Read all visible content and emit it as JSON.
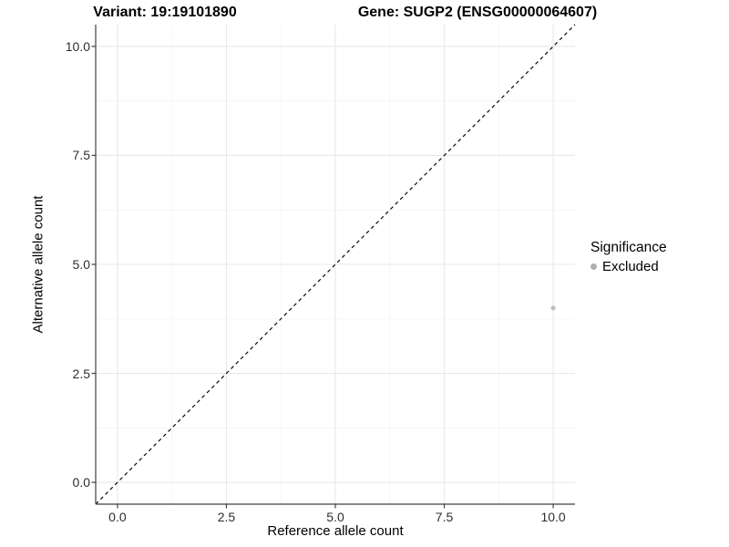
{
  "chart_data": {
    "type": "scatter",
    "title_left": "Variant: 19:19101890",
    "title_right": "Gene: SUGP2 (ENSG00000064607)",
    "xlabel": "Reference allele count",
    "ylabel": "Alternative allele count",
    "xlim": [
      -0.5,
      10.5
    ],
    "ylim": [
      -0.5,
      10.5
    ],
    "x_ticks": [
      0.0,
      2.5,
      5.0,
      7.5,
      10.0
    ],
    "x_tick_labels": [
      "0.0",
      "2.5",
      "5.0",
      "7.5",
      "10.0"
    ],
    "y_ticks": [
      0.0,
      2.5,
      5.0,
      7.5,
      10.0
    ],
    "y_tick_labels": [
      "0.0",
      "2.5",
      "5.0",
      "7.5",
      "10.0"
    ],
    "minor_gridlines": [
      1.25,
      3.75,
      6.25,
      8.75
    ],
    "grid": true,
    "reference_line": {
      "type": "identity",
      "style": "dashed",
      "from": [
        -0.5,
        -0.5
      ],
      "to": [
        10.5,
        10.5
      ],
      "color": "#000000"
    },
    "series": [
      {
        "name": "Excluded",
        "color": "#bfbfbf",
        "points": [
          {
            "x": 10,
            "y": 4
          }
        ]
      }
    ],
    "legend": {
      "title": "Significance",
      "position": "right",
      "items": [
        {
          "label": "Excluded",
          "color": "#b0b0b0"
        }
      ]
    },
    "colors": {
      "background": "#ffffff",
      "grid_major": "#e8e8e8",
      "grid_minor": "#f4f4f4",
      "axis_line": "#404040",
      "tick_text": "#2e2e2e",
      "title_text": "#000000"
    }
  }
}
